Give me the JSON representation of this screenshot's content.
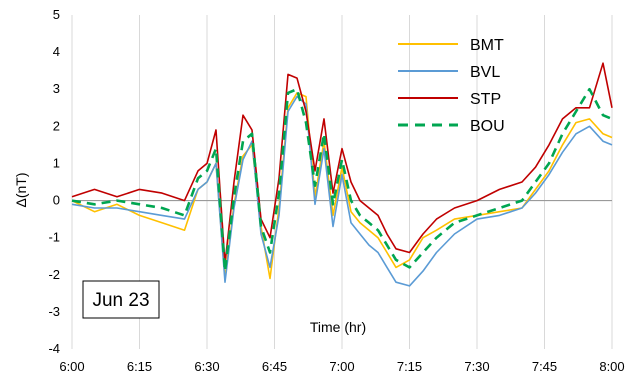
{
  "chart_data": {
    "type": "line",
    "xlabel": "Time (hr)",
    "ylabel": "Δ(nT)",
    "annotation": "Jun 23",
    "x_ticks": [
      "6:00",
      "6:15",
      "6:30",
      "6:45",
      "7:00",
      "7:15",
      "7:30",
      "7:45",
      "8:00"
    ],
    "y_ticks": [
      "-4",
      "-3",
      "-2",
      "-1",
      "0",
      "1",
      "2",
      "3",
      "4",
      "5"
    ],
    "xlim": [
      "6:00",
      "8:00"
    ],
    "ylim": [
      -4,
      5
    ],
    "grid": "vertical",
    "legend_position": "top-right",
    "x": [
      "6:00",
      "6:05",
      "6:10",
      "6:15",
      "6:20",
      "6:25",
      "6:28",
      "6:30",
      "6:32",
      "6:34",
      "6:36",
      "6:38",
      "6:40",
      "6:42",
      "6:44",
      "6:46",
      "6:48",
      "6:50",
      "6:52",
      "6:54",
      "6:56",
      "6:58",
      "7:00",
      "7:02",
      "7:04",
      "7:06",
      "7:08",
      "7:10",
      "7:12",
      "7:15",
      "7:18",
      "7:21",
      "7:25",
      "7:30",
      "7:35",
      "7:40",
      "7:43",
      "7:46",
      "7:49",
      "7:52",
      "7:55",
      "7:58",
      "8:00"
    ],
    "series": [
      {
        "name": "BMT",
        "color": "#FFC000",
        "dash": "solid",
        "values": [
          0.0,
          -0.3,
          -0.1,
          -0.4,
          -0.6,
          -0.8,
          0.3,
          0.5,
          1.0,
          -2.1,
          -0.1,
          1.2,
          1.5,
          -0.7,
          -2.1,
          -0.2,
          2.5,
          2.9,
          2.8,
          0.1,
          1.6,
          -0.4,
          0.9,
          -0.3,
          -0.6,
          -0.8,
          -1.0,
          -1.4,
          -1.8,
          -1.6,
          -1.0,
          -0.8,
          -0.5,
          -0.4,
          -0.3,
          -0.2,
          0.3,
          0.8,
          1.5,
          2.1,
          2.2,
          1.8,
          1.7
        ]
      },
      {
        "name": "BVL",
        "color": "#5B9BD5",
        "dash": "solid",
        "values": [
          -0.1,
          -0.2,
          -0.2,
          -0.3,
          -0.4,
          -0.5,
          0.3,
          0.5,
          1.0,
          -2.2,
          -0.2,
          1.1,
          1.6,
          -0.9,
          -1.8,
          -0.4,
          2.4,
          2.8,
          2.6,
          -0.1,
          1.4,
          -0.7,
          0.7,
          -0.6,
          -0.9,
          -1.2,
          -1.4,
          -1.8,
          -2.2,
          -2.3,
          -1.9,
          -1.4,
          -0.9,
          -0.5,
          -0.4,
          -0.2,
          0.2,
          0.7,
          1.3,
          1.8,
          2.0,
          1.6,
          1.5
        ]
      },
      {
        "name": "STP",
        "color": "#C00000",
        "dash": "solid",
        "values": [
          0.1,
          0.3,
          0.1,
          0.3,
          0.2,
          0.0,
          0.8,
          1.0,
          1.9,
          -1.7,
          0.5,
          2.3,
          1.9,
          -0.5,
          -1.0,
          0.6,
          3.4,
          3.3,
          2.4,
          0.8,
          2.2,
          0.2,
          1.4,
          0.5,
          0.0,
          -0.2,
          -0.4,
          -0.9,
          -1.3,
          -1.4,
          -0.9,
          -0.5,
          -0.2,
          0.0,
          0.3,
          0.5,
          0.9,
          1.5,
          2.2,
          2.5,
          2.5,
          3.7,
          2.5
        ]
      },
      {
        "name": "BOU",
        "color": "#00A651",
        "dash": "dashed",
        "values": [
          0.0,
          -0.1,
          0.0,
          -0.1,
          -0.2,
          -0.4,
          0.6,
          0.8,
          1.4,
          -1.9,
          0.1,
          1.6,
          1.8,
          -0.7,
          -1.4,
          0.2,
          2.9,
          3.0,
          2.1,
          0.4,
          1.8,
          -0.1,
          1.1,
          0.0,
          -0.4,
          -0.6,
          -0.8,
          -1.2,
          -1.6,
          -1.8,
          -1.4,
          -1.0,
          -0.6,
          -0.4,
          -0.2,
          0.0,
          0.5,
          1.0,
          1.8,
          2.4,
          3.0,
          2.3,
          2.2
        ]
      }
    ]
  }
}
